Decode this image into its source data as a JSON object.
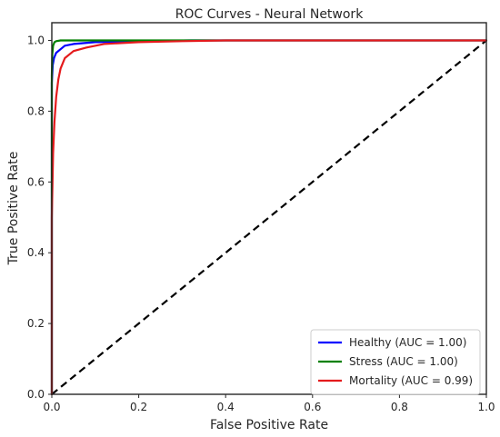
{
  "chart_data": {
    "type": "line",
    "title": "ROC Curves - Neural Network",
    "xlabel": "False Positive Rate",
    "ylabel": "True Positive Rate",
    "xlim": [
      0.0,
      1.0
    ],
    "ylim": [
      0.0,
      1.05
    ],
    "x_ticks": [
      "0.0",
      "0.2",
      "0.4",
      "0.6",
      "0.8",
      "1.0"
    ],
    "y_ticks": [
      "0.0",
      "0.2",
      "0.4",
      "0.6",
      "0.8",
      "1.0"
    ],
    "grid": false,
    "legend_location": "lower-right",
    "series": [
      {
        "name": "Healthy (AUC = 1.00)",
        "color": "#0000ff",
        "x": [
          0.0,
          0.0,
          0.002,
          0.005,
          0.01,
          0.02,
          0.03,
          0.05,
          0.1,
          0.2,
          0.32,
          0.5,
          1.0
        ],
        "y": [
          0.0,
          0.88,
          0.93,
          0.95,
          0.965,
          0.975,
          0.985,
          0.99,
          0.995,
          0.998,
          1.0,
          1.0,
          1.0
        ]
      },
      {
        "name": "Stress (AUC = 1.00)",
        "color": "#008000",
        "x": [
          0.0,
          0.0,
          0.001,
          0.003,
          0.006,
          0.01,
          0.02,
          0.05,
          0.1,
          0.3,
          1.0
        ],
        "y": [
          0.0,
          0.9,
          0.96,
          0.985,
          0.995,
          0.998,
          1.0,
          1.0,
          1.0,
          1.0,
          1.0
        ]
      },
      {
        "name": "Mortality (AUC = 0.99)",
        "color": "#e41a1c",
        "x": [
          0.0,
          0.0,
          0.003,
          0.006,
          0.01,
          0.015,
          0.02,
          0.03,
          0.05,
          0.08,
          0.12,
          0.2,
          0.3,
          0.4,
          1.0
        ],
        "y": [
          0.0,
          0.5,
          0.68,
          0.77,
          0.84,
          0.89,
          0.92,
          0.95,
          0.97,
          0.98,
          0.99,
          0.995,
          0.998,
          1.0,
          1.0
        ]
      }
    ],
    "reference_line": {
      "x": [
        0.0,
        1.0
      ],
      "y": [
        0.0,
        1.0
      ],
      "color": "#000000",
      "style": "dashed"
    }
  }
}
